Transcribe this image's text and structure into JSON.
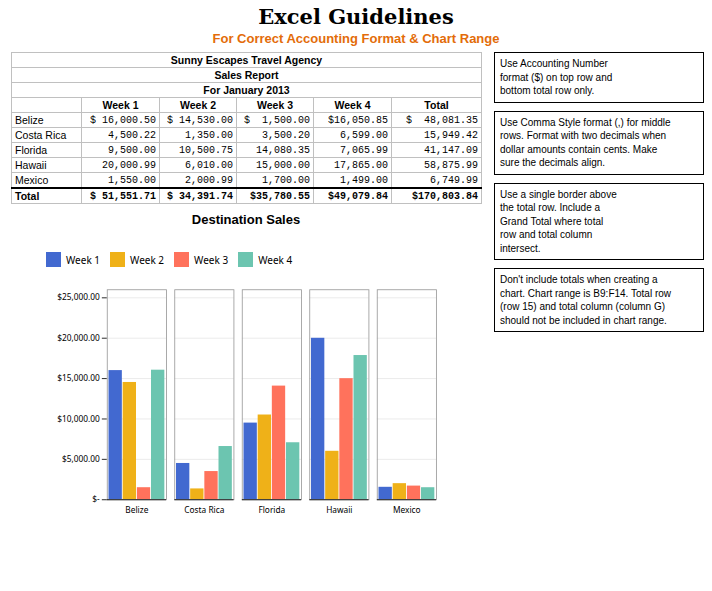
{
  "title": "Excel Guidelines",
  "subtitle": "For Correct Accounting Format & Chart Range",
  "table": {
    "header_lines": [
      "Sunny Escapes Travel Agency",
      "Sales Report",
      "For January 2013"
    ],
    "columns": [
      "Week 1",
      "Week 2",
      "Week 3",
      "Week 4",
      "Total"
    ],
    "rows": [
      [
        "Belize",
        "$ 16,000.50",
        "$ 14,530.00",
        "$  1,500.00",
        "$16,050.85",
        "$  48,081.35"
      ],
      [
        "Costa Rica",
        "4,500.22",
        "1,350.00",
        "3,500.20",
        "6,599.00",
        "15,949.42"
      ],
      [
        "Florida",
        "9,500.00",
        "10,500.75",
        "14,080.35",
        "7,065.99",
        "41,147.09"
      ],
      [
        "Hawaii",
        "20,000.99",
        "6,010.00",
        "15,000.00",
        "17,865.00",
        "58,875.99"
      ],
      [
        "Mexico",
        "1,550.00",
        "2,000.99",
        "1,700.00",
        "1,499.00",
        "6,749.99"
      ],
      [
        "Total",
        "$ 51,551.71",
        "$ 34,391.74",
        "$35,780.55",
        "$49,079.84",
        "$170,803.84"
      ]
    ]
  },
  "annotations": [
    "Use Accounting Number\nformat ($) on top row and\nbottom total row only.",
    "Use Comma Style format (,) for middle\nrows. Format with two decimals when\ndollar amounts contain cents. Make\nsure the decimals align.",
    "Use a single border above\nthe total row. Include a\nGrand Total where total\nrow and total column\nintersect.",
    "Don't include totals when creating a\nchart. Chart range is B9:F14. Total row\n(row 15) and total column (column G)\nshould not be included in chart range."
  ],
  "chart_data": {
    "type": "bar",
    "title": "Destination Sales",
    "categories": [
      "Belize",
      "Costa Rica",
      "Florida",
      "Hawaii",
      "Mexico"
    ],
    "series": [
      {
        "name": "Week 1",
        "values": [
          16000.5,
          4500.22,
          9500.0,
          20000.99,
          1550.0
        ]
      },
      {
        "name": "Week 2",
        "values": [
          14530.0,
          1350.0,
          10500.75,
          6010.0,
          2000.99
        ]
      },
      {
        "name": "Week 3",
        "values": [
          1500.0,
          3500.2,
          14080.35,
          15000.0,
          1700.0
        ]
      },
      {
        "name": "Week 4",
        "values": [
          16050.85,
          6599.0,
          7065.99,
          17865.0,
          1499.0
        ]
      }
    ],
    "ylim": [
      0,
      26000
    ],
    "yticks": [
      {
        "value": 0,
        "label": "$-"
      },
      {
        "value": 5000,
        "label": "$5,000.00"
      },
      {
        "value": 10000,
        "label": "$10,000.00"
      },
      {
        "value": 15000,
        "label": "$15,000.00"
      },
      {
        "value": 20000,
        "label": "$20,000.00"
      },
      {
        "value": 25000,
        "label": "$25,000.00"
      }
    ],
    "grid": true,
    "legend": "top"
  }
}
